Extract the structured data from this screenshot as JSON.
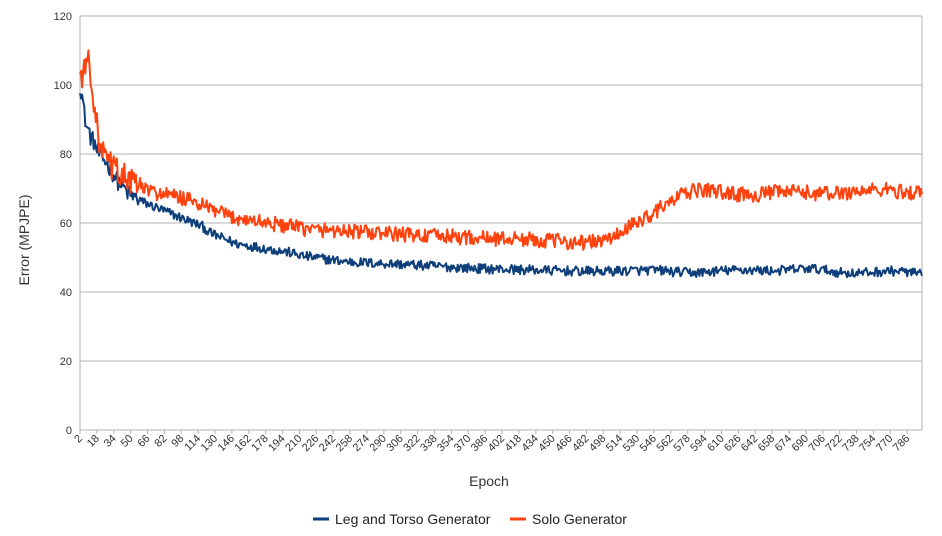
{
  "chart_data": {
    "type": "line",
    "title": "",
    "xlabel": "Epoch",
    "ylabel": "Error (MPJPE)",
    "ylim": [
      0,
      120
    ],
    "yticks": [
      0,
      20,
      40,
      60,
      80,
      100,
      120
    ],
    "xlim": [
      2,
      800
    ],
    "xticks": [
      2,
      18,
      34,
      50,
      66,
      82,
      98,
      114,
      130,
      146,
      162,
      178,
      194,
      210,
      226,
      242,
      258,
      274,
      290,
      306,
      322,
      338,
      354,
      370,
      386,
      402,
      418,
      434,
      450,
      466,
      482,
      498,
      514,
      530,
      546,
      562,
      578,
      594,
      610,
      626,
      642,
      658,
      674,
      690,
      706,
      722,
      738,
      754,
      770,
      786
    ],
    "grid": "horizontal",
    "legend_position": "bottom",
    "series": [
      {
        "name": "Leg and Torso Generator",
        "color": "#0e3f7a",
        "x": [
          2,
          4,
          6,
          8,
          10,
          12,
          14,
          16,
          18,
          20,
          22,
          26,
          30,
          34,
          38,
          42,
          46,
          50,
          56,
          62,
          70,
          78,
          86,
          94,
          102,
          110,
          118,
          126,
          134,
          142,
          150,
          160,
          170,
          180,
          190,
          200,
          212,
          224,
          236,
          248,
          260,
          272,
          284,
          296,
          308,
          320,
          332,
          344,
          356,
          368,
          380,
          392,
          404,
          416,
          428,
          440,
          452,
          464,
          476,
          488,
          500,
          512,
          524,
          536,
          548,
          556,
          560,
          566,
          572,
          580,
          588,
          596,
          604,
          612,
          620,
          628,
          636,
          644,
          652,
          660,
          668,
          676,
          684,
          692,
          700,
          708,
          716,
          724,
          732,
          740,
          748,
          756,
          764,
          772,
          780,
          788,
          796,
          800
        ],
        "values": [
          100,
          97,
          92,
          88,
          87,
          85,
          84,
          83,
          81,
          80,
          79,
          78,
          76,
          74,
          72,
          71,
          69,
          68,
          67,
          66,
          65,
          64,
          63,
          62,
          61,
          60,
          59,
          57,
          56,
          55,
          54,
          53.5,
          53,
          52.5,
          52,
          51.5,
          50.5,
          50,
          49.5,
          49,
          48.7,
          48.5,
          48.3,
          48.2,
          48,
          47.8,
          47.6,
          47.4,
          47.2,
          47,
          46.8,
          46.7,
          46.6,
          46.5,
          46.4,
          46.3,
          46.2,
          46.1,
          46,
          46,
          46,
          46.1,
          46.2,
          46.3,
          46.3,
          46.2,
          46,
          45.8,
          45.7,
          45.6,
          45.6,
          45.8,
          46,
          46.2,
          46.3,
          46.4,
          46.4,
          46.3,
          46.2,
          46.2,
          46.3,
          46.5,
          46.7,
          46.8,
          46.7,
          46.3,
          45.9,
          45.6,
          45.5,
          45.5,
          45.6,
          45.8,
          46,
          46.1,
          46,
          45.7,
          45.3,
          45.1
        ]
      },
      {
        "name": "Solo Generator",
        "color": "#ff420e",
        "x": [
          2,
          4,
          6,
          8,
          10,
          12,
          14,
          16,
          18,
          20,
          22,
          26,
          30,
          34,
          38,
          42,
          46,
          50,
          56,
          62,
          70,
          78,
          86,
          94,
          102,
          110,
          118,
          126,
          134,
          142,
          150,
          160,
          170,
          180,
          190,
          200,
          212,
          224,
          236,
          248,
          260,
          272,
          284,
          296,
          308,
          320,
          332,
          344,
          356,
          368,
          380,
          392,
          404,
          416,
          428,
          440,
          452,
          464,
          476,
          488,
          500,
          508,
          516,
          524,
          532,
          540,
          548,
          556,
          564,
          572,
          580,
          588,
          596,
          604,
          612,
          620,
          628,
          636,
          644,
          652,
          660,
          668,
          676,
          684,
          692,
          700,
          708,
          716,
          724,
          732,
          740,
          748,
          756,
          764,
          772,
          780,
          788,
          796,
          800
        ],
        "values": [
          103,
          103,
          104,
          106,
          108,
          104,
          98,
          92,
          88,
          84,
          81,
          79,
          77,
          76,
          75,
          74,
          73,
          72,
          71,
          70,
          69,
          68.5,
          68,
          67.5,
          67,
          66,
          65,
          64,
          63,
          62,
          61.5,
          61,
          60.5,
          60,
          59.5,
          59,
          58.5,
          58,
          58,
          57.8,
          57.5,
          57.3,
          57,
          56.8,
          56.7,
          56.5,
          56.3,
          56.2,
          56,
          55.8,
          55.7,
          55.5,
          55.5,
          55.4,
          55.2,
          55,
          54.8,
          54.6,
          54.4,
          54.5,
          55,
          56,
          57.5,
          59,
          60.5,
          62,
          63.5,
          65,
          66.5,
          68,
          69,
          69.5,
          69.5,
          69.3,
          68.8,
          68.5,
          68.3,
          68.2,
          68.3,
          68.5,
          68.8,
          69,
          69,
          69,
          68.8,
          68.6,
          68.5,
          68.6,
          68.8,
          69,
          69.2,
          69.4,
          69.6,
          69.6,
          69.4,
          69.1,
          68.9,
          68.8,
          69
        ]
      }
    ]
  }
}
